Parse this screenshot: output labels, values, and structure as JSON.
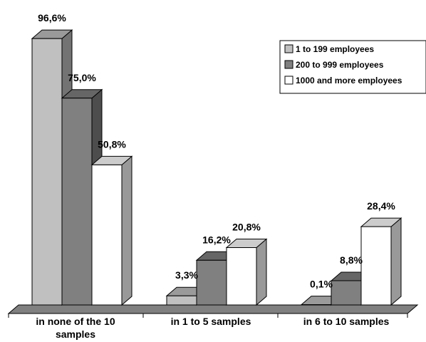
{
  "chart_data": {
    "type": "bar",
    "categories": [
      [
        "in none of the 10",
        "samples"
      ],
      [
        "in 1 to 5 samples"
      ],
      [
        "in 6 to 10 samples"
      ]
    ],
    "series": [
      {
        "name": "1 to 199 employees",
        "values": [
          96.6,
          3.3,
          0.1
        ],
        "labels": [
          "96,6%",
          "3,3%",
          "0,1%"
        ],
        "color": "#c0c0c0"
      },
      {
        "name": "200 to 999 employees",
        "values": [
          75.0,
          16.2,
          8.8
        ],
        "labels": [
          "75,0%",
          "16,2%",
          "8,8%"
        ],
        "color": "#808080"
      },
      {
        "name": "1000 and more employees",
        "values": [
          50.8,
          20.8,
          28.4
        ],
        "labels": [
          "50,8%",
          "20,8%",
          "28,4%"
        ],
        "color": "#ffffff"
      }
    ],
    "ylim": [
      0,
      100
    ],
    "grid": false,
    "legend_position": "top-right"
  }
}
